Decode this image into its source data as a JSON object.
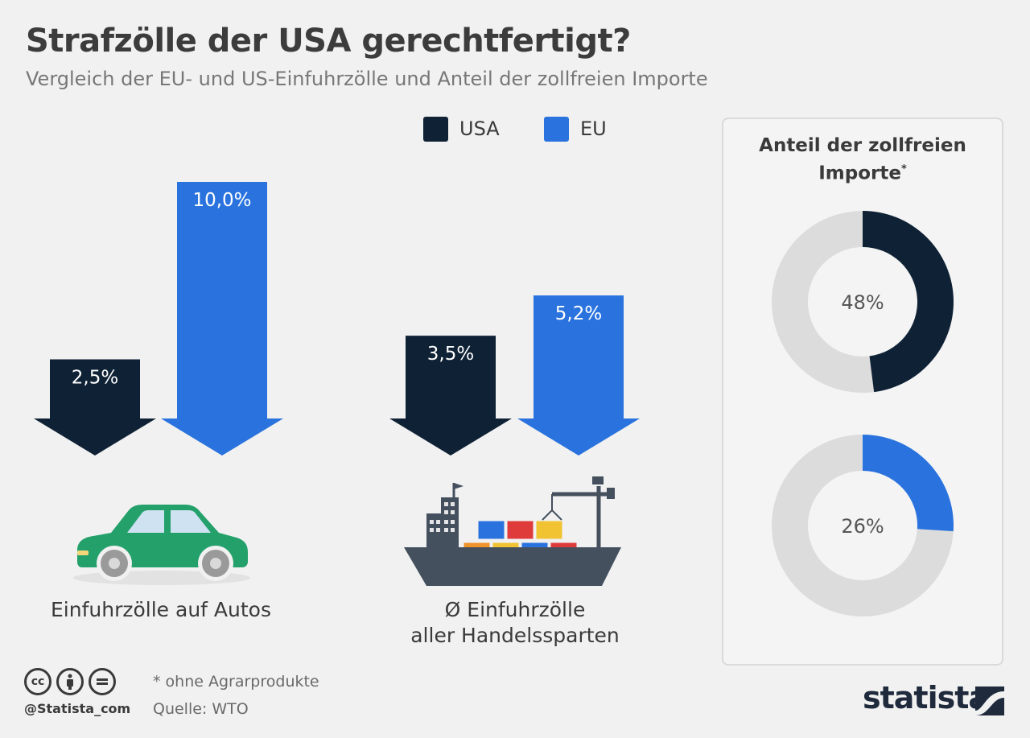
{
  "header": {
    "title": "Strafzölle der USA gerechtfertigt?",
    "subtitle": "Vergleich der EU- und US-Einfuhrzölle und Anteil der zollfreien Importe"
  },
  "legend": [
    {
      "label": "USA",
      "color": "#0f2235"
    },
    {
      "label": "EU",
      "color": "#2a73de"
    }
  ],
  "panel": {
    "title_line1": "Anteil der zollfreien",
    "title_line2": "Importe",
    "title_mark": "*"
  },
  "footer": {
    "handle": "@Statista_com",
    "footnote": "* ohne Agrarprodukte",
    "source": "Quelle: WTO",
    "brand": "statista"
  },
  "chart_data": [
    {
      "type": "bar",
      "categories": [
        "Einfuhrzölle auf Autos",
        "Ø Einfuhrzölle\naller Handelssparten"
      ],
      "series": [
        {
          "name": "USA",
          "values": [
            2.5,
            3.5
          ],
          "labels": [
            "2,5%",
            "3,5%"
          ],
          "color": "#0f2235"
        },
        {
          "name": "EU",
          "values": [
            10.0,
            5.2
          ],
          "labels": [
            "10,0%",
            "5,2%"
          ],
          "color": "#2a73de"
        }
      ],
      "ylim": [
        0,
        10.0
      ],
      "icons": [
        "car-icon",
        "cargo-ship-icon"
      ]
    },
    {
      "type": "pie",
      "title": "Anteil der zollfreien Importe*",
      "donuts": [
        {
          "name": "USA",
          "value": 48,
          "label": "48%",
          "color": "#0f2235"
        },
        {
          "name": "EU",
          "value": 26,
          "label": "26%",
          "color": "#2a73de"
        }
      ],
      "remainder_color": "#dcdcdc"
    }
  ]
}
